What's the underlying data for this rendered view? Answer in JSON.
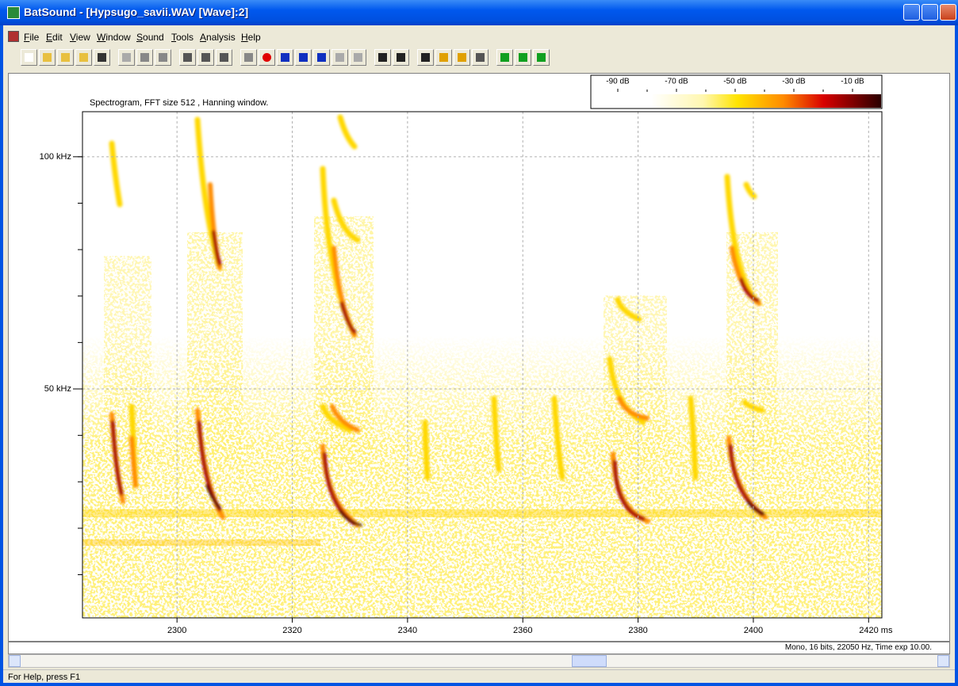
{
  "window": {
    "title": "BatSound - [Hypsugo_savii.WAV [Wave]:2]"
  },
  "menu": [
    "File",
    "Edit",
    "View",
    "Window",
    "Sound",
    "Tools",
    "Analysis",
    "Help"
  ],
  "spectrogram": {
    "title": "Spectrogram, FFT size 512 , Hanning window.",
    "xlim": [
      2283.6,
      2422.3
    ],
    "ylim": [
      0.7,
      109.7
    ],
    "xticks": [
      2300,
      2320,
      2340,
      2360,
      2380,
      2400,
      {
        "value": 2420,
        "label": "2420 ms"
      }
    ],
    "yticks": [
      {
        "value": 50,
        "label": "50 kHz"
      },
      {
        "value": 100,
        "label": "100 kHz"
      }
    ],
    "colorbar": [
      "-90 dB",
      "-70 dB",
      "-50 dB",
      "-30 dB",
      "-10 dB"
    ]
  },
  "status": {
    "format": "Mono, 16 bits, 22050 Hz, Time exp 10.00.",
    "help": "For Help, press F1"
  }
}
